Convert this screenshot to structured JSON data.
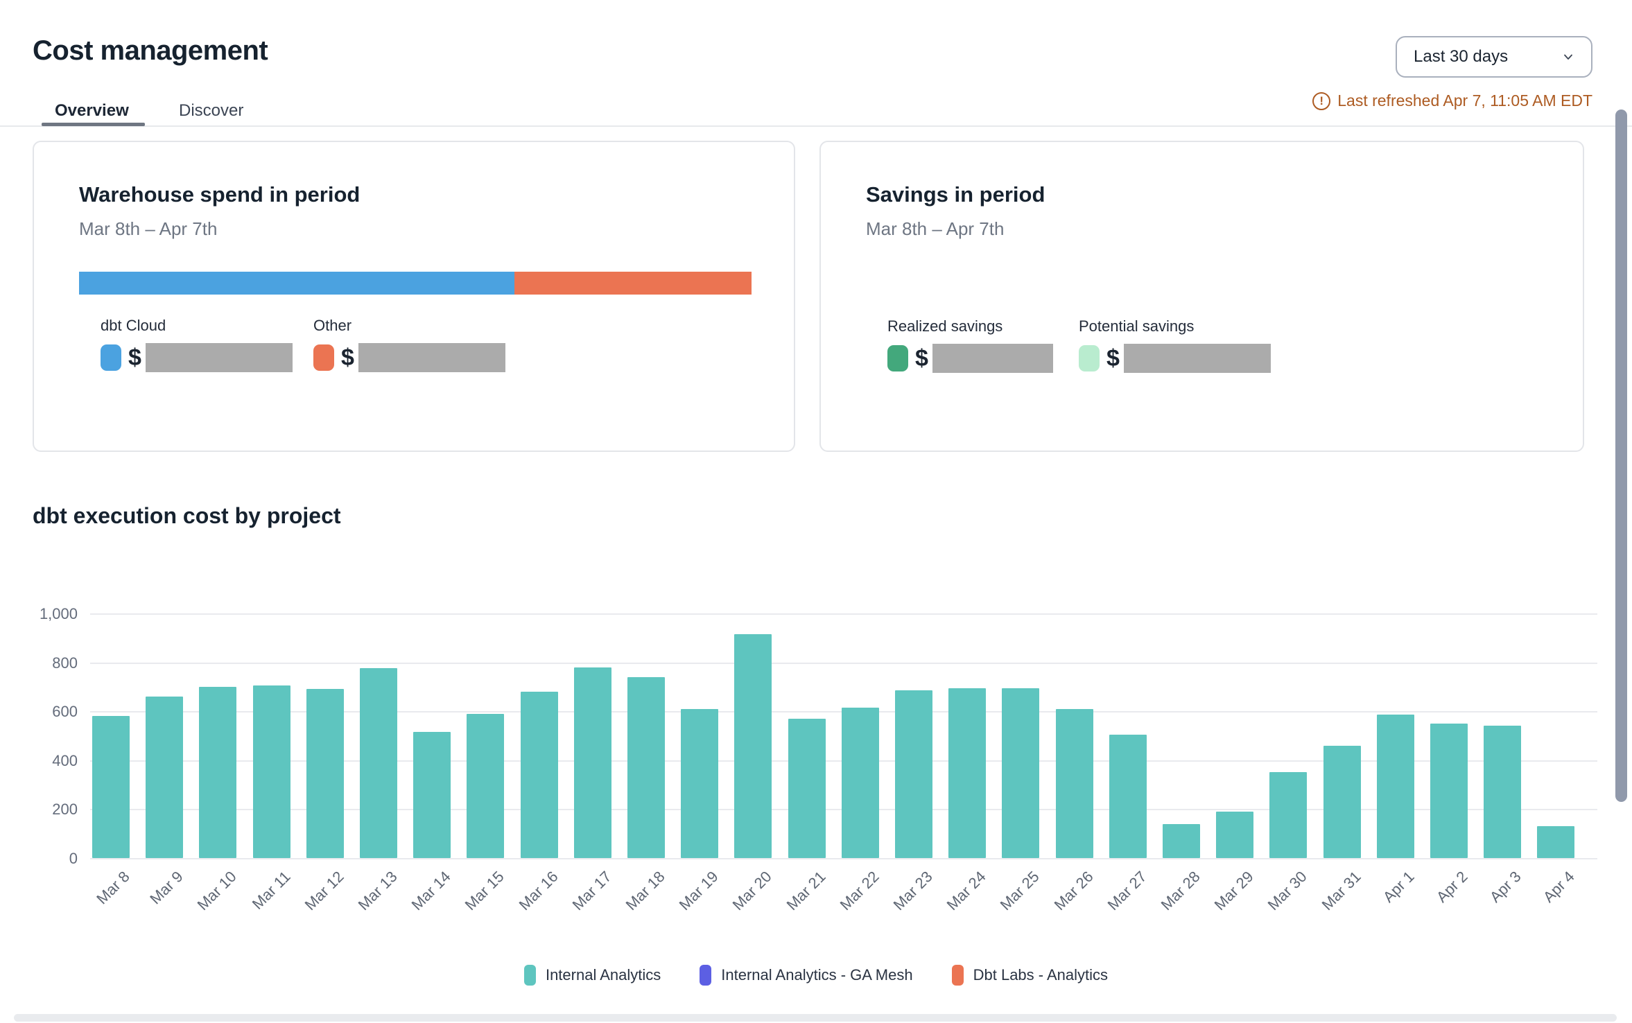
{
  "header": {
    "title": "Cost management",
    "range_selector": {
      "value": "Last 30 days"
    },
    "last_refreshed": "Last refreshed Apr 7, 11:05 AM EDT",
    "last_refreshed_color": "#ad5b22"
  },
  "tabs": {
    "overview": "Overview",
    "discover": "Discover"
  },
  "warehouse_card": {
    "title": "Warehouse spend in period",
    "period": "Mar 8th – Apr 7th",
    "currency": "$",
    "segments": [
      {
        "label": "dbt Cloud",
        "color": "#4ba2e0",
        "pct": 64.7,
        "value_redacted": true
      },
      {
        "label": "Other",
        "color": "#eb7452",
        "pct": 35.3,
        "value_redacted": true
      }
    ]
  },
  "savings_card": {
    "title": "Savings in period",
    "period": "Mar 8th – Apr 7th",
    "currency": "$",
    "items": [
      {
        "label": "Realized savings",
        "color": "#43a87c",
        "value_redacted": true
      },
      {
        "label": "Potential savings",
        "color": "#b9eccf",
        "value_redacted": true
      }
    ]
  },
  "chart_data": {
    "type": "bar",
    "title": "dbt execution cost by project",
    "categories": [
      "Mar 8",
      "Mar 9",
      "Mar 10",
      "Mar 11",
      "Mar 12",
      "Mar 13",
      "Mar 14",
      "Mar 15",
      "Mar 16",
      "Mar 17",
      "Mar 18",
      "Mar 19",
      "Mar 20",
      "Mar 21",
      "Mar 22",
      "Mar 23",
      "Mar 24",
      "Mar 25",
      "Mar 26",
      "Mar 27",
      "Mar 28",
      "Mar 29",
      "Mar 30",
      "Mar 31",
      "Apr 1",
      "Apr 2",
      "Apr 3",
      "Apr 4"
    ],
    "values": [
      580,
      660,
      700,
      705,
      690,
      775,
      515,
      590,
      680,
      780,
      740,
      610,
      915,
      570,
      615,
      685,
      695,
      695,
      610,
      505,
      140,
      190,
      350,
      460,
      585,
      550,
      540,
      130
    ],
    "xlabel": "",
    "ylabel": "",
    "ylim": [
      0,
      1000
    ],
    "yticks": [
      0,
      200,
      400,
      600,
      800,
      1000
    ],
    "grid": "horizontal",
    "bar_color": "#5ec5bf",
    "legend_position": "bottom",
    "legend": [
      {
        "label": "Internal Analytics",
        "color": "#5ec5bf"
      },
      {
        "label": "Internal Analytics - GA Mesh",
        "color": "#5c5fe3"
      },
      {
        "label": "Dbt Labs - Analytics",
        "color": "#eb7452"
      }
    ]
  }
}
